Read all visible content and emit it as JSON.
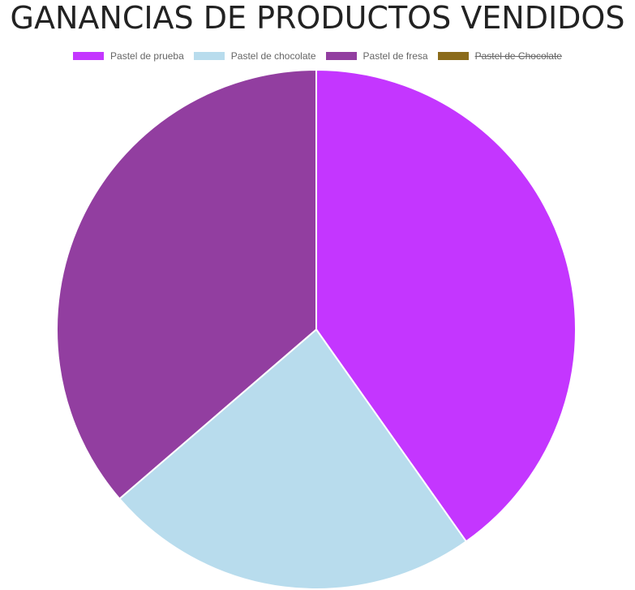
{
  "chart_data": {
    "type": "pie",
    "title": "GANANCIAS DE PRODUCTOS VENDIDOS",
    "series": [
      {
        "name": "Pastel de prueba",
        "value": 40.2,
        "color": "#c436ff",
        "hidden": false
      },
      {
        "name": "Pastel de chocolate",
        "value": 23.5,
        "color": "#b8dced",
        "hidden": false
      },
      {
        "name": "Pastel de fresa",
        "value": 36.3,
        "color": "#923ea0",
        "hidden": false
      },
      {
        "name": "Pastel de Chocolate",
        "value": 0,
        "color": "#8b6b1a",
        "hidden": true
      }
    ],
    "legend_position": "top"
  }
}
